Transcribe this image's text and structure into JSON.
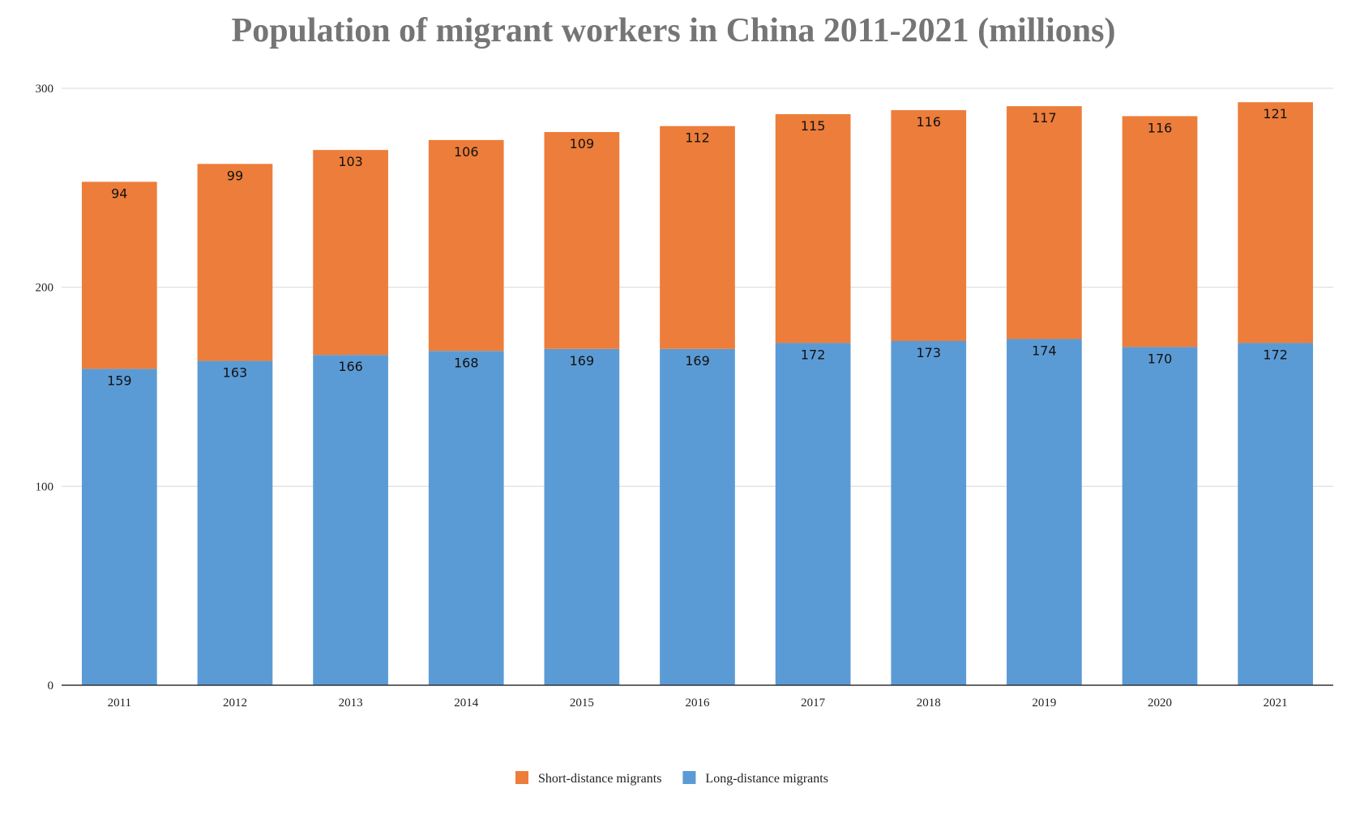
{
  "chart_data": {
    "type": "bar",
    "stacked": true,
    "title": "Population of migrant workers in China 2011-2021 (millions)",
    "xlabel": "",
    "ylabel": "",
    "categories": [
      "2011",
      "2012",
      "2013",
      "2014",
      "2015",
      "2016",
      "2017",
      "2018",
      "2019",
      "2020",
      "2021"
    ],
    "series": [
      {
        "name": "Long-distance migrants",
        "color": "#5b9bd5",
        "values": [
          159,
          163,
          166,
          168,
          169,
          169,
          172,
          173,
          174,
          170,
          172
        ]
      },
      {
        "name": "Short-distance migrants",
        "color": "#ed7d3a",
        "values": [
          94,
          99,
          103,
          106,
          109,
          112,
          115,
          116,
          117,
          116,
          121
        ]
      }
    ],
    "ylim": [
      0,
      300
    ],
    "yticks": [
      0,
      100,
      200,
      300
    ],
    "grid": true,
    "data_labels": true,
    "legend": {
      "position": "bottom",
      "order": [
        "Short-distance migrants",
        "Long-distance migrants"
      ]
    }
  }
}
